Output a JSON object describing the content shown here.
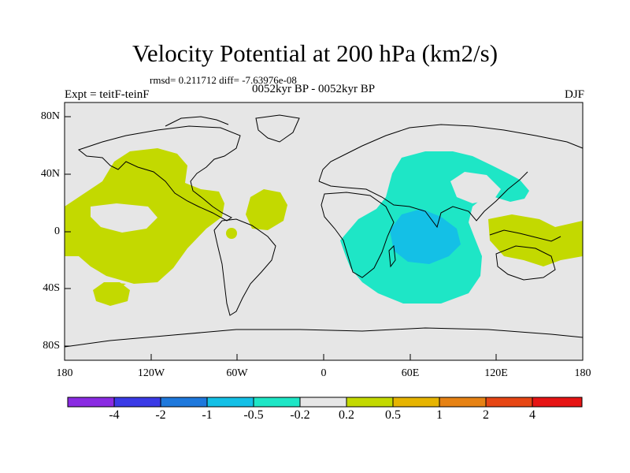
{
  "title": "Velocity Potential at 200 hPa (km2/s)",
  "stats": "rmsd= 0.211712 diff= -7.63976e-08",
  "left_label": "Expt = teitF-teinF",
  "center_label": "0052kyr BP - 0052kyr BP",
  "right_label": "DJF",
  "map": {
    "projection": "cylindrical equidistant",
    "lat_ticks": [
      "80N",
      "40N",
      "0",
      "40S",
      "80S"
    ],
    "lon_ticks": [
      "180",
      "120W",
      "60W",
      "0",
      "60E",
      "120E",
      "180"
    ],
    "lon_range": [
      -180,
      180
    ],
    "lat_range": [
      -90,
      90
    ]
  },
  "colorbar": {
    "colors": [
      "#8a2be2",
      "#3a3ae6",
      "#1e78dc",
      "#14c0e6",
      "#1ee6c6",
      "#e6e6e6",
      "#c3d900",
      "#e6b400",
      "#e68214",
      "#e64614",
      "#e61414"
    ],
    "labels": [
      "-4",
      "-2",
      "-1",
      "-0.5",
      "-0.2",
      "0.2",
      "0.5",
      "1",
      "2",
      "4"
    ]
  },
  "colors": {
    "background_field": "#e6e6e6",
    "positive_fill": "#c3d900",
    "negative_fill": "#1ee6c6",
    "strong_negative_fill": "#14c0e6"
  }
}
